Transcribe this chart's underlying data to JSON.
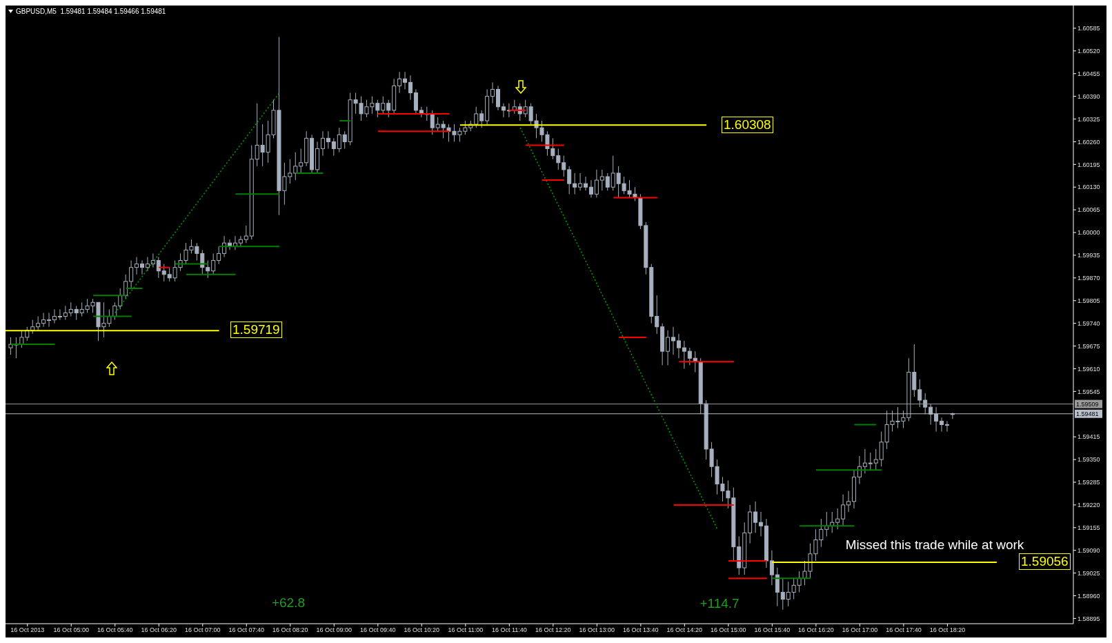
{
  "chart_data": {
    "type": "candlestick",
    "title": "GBPUSD,M5  1.59481 1.59484 1.59466 1.59481",
    "color": "#a7b0bf",
    "x": [
      "2013-10-16T04:05",
      "2013-10-16T04:10",
      "2013-10-16T04:15",
      "2013-10-16T04:20",
      "2013-10-16T04:25",
      "2013-10-16T04:30",
      "2013-10-16T04:35",
      "2013-10-16T04:40",
      "2013-10-16T04:45",
      "2013-10-16T04:50",
      "2013-10-16T04:55",
      "2013-10-16T05:00",
      "2013-10-16T05:05",
      "2013-10-16T05:10",
      "2013-10-16T05:15",
      "2013-10-16T05:20",
      "2013-10-16T05:25",
      "2013-10-16T05:30",
      "2013-10-16T05:35",
      "2013-10-16T05:40",
      "2013-10-16T05:45",
      "2013-10-16T05:50",
      "2013-10-16T05:55",
      "2013-10-16T06:00",
      "2013-10-16T06:05",
      "2013-10-16T06:10",
      "2013-10-16T06:15",
      "2013-10-16T06:20",
      "2013-10-16T06:25",
      "2013-10-16T06:30",
      "2013-10-16T06:35",
      "2013-10-16T06:40",
      "2013-10-16T06:45",
      "2013-10-16T06:50",
      "2013-10-16T06:55",
      "2013-10-16T07:00",
      "2013-10-16T07:05",
      "2013-10-16T07:10",
      "2013-10-16T07:15",
      "2013-10-16T07:20",
      "2013-10-16T07:25",
      "2013-10-16T07:30",
      "2013-10-16T07:35",
      "2013-10-16T07:40",
      "2013-10-16T07:45",
      "2013-10-16T07:50",
      "2013-10-16T07:55",
      "2013-10-16T08:00",
      "2013-10-16T08:05",
      "2013-10-16T08:10",
      "2013-10-16T08:15",
      "2013-10-16T08:20",
      "2013-10-16T08:25",
      "2013-10-16T08:30",
      "2013-10-16T08:35",
      "2013-10-16T08:40",
      "2013-10-16T08:45",
      "2013-10-16T08:50",
      "2013-10-16T08:55",
      "2013-10-16T09:00",
      "2013-10-16T09:05",
      "2013-10-16T09:10",
      "2013-10-16T09:15",
      "2013-10-16T09:20",
      "2013-10-16T09:25",
      "2013-10-16T09:30",
      "2013-10-16T09:35",
      "2013-10-16T09:40",
      "2013-10-16T09:45",
      "2013-10-16T09:50",
      "2013-10-16T09:55",
      "2013-10-16T10:00",
      "2013-10-16T10:05",
      "2013-10-16T10:10",
      "2013-10-16T10:15",
      "2013-10-16T10:20",
      "2013-10-16T10:25",
      "2013-10-16T10:30",
      "2013-10-16T10:35",
      "2013-10-16T10:40",
      "2013-10-16T10:45",
      "2013-10-16T10:50",
      "2013-10-16T10:55",
      "2013-10-16T11:00",
      "2013-10-16T11:05",
      "2013-10-16T11:10",
      "2013-10-16T11:15",
      "2013-10-16T11:20",
      "2013-10-16T11:25",
      "2013-10-16T11:30",
      "2013-10-16T11:35",
      "2013-10-16T11:40",
      "2013-10-16T11:45",
      "2013-10-16T11:50",
      "2013-10-16T11:55",
      "2013-10-16T12:00",
      "2013-10-16T12:05",
      "2013-10-16T12:10",
      "2013-10-16T12:15",
      "2013-10-16T12:20",
      "2013-10-16T12:25",
      "2013-10-16T12:30",
      "2013-10-16T12:35",
      "2013-10-16T12:40",
      "2013-10-16T12:45",
      "2013-10-16T12:50",
      "2013-10-16T12:55",
      "2013-10-16T13:00",
      "2013-10-16T13:05",
      "2013-10-16T13:10",
      "2013-10-16T13:15",
      "2013-10-16T13:20",
      "2013-10-16T13:25",
      "2013-10-16T13:30",
      "2013-10-16T13:35",
      "2013-10-16T13:40",
      "2013-10-16T13:45",
      "2013-10-16T13:50",
      "2013-10-16T13:55",
      "2013-10-16T14:00",
      "2013-10-16T14:05",
      "2013-10-16T14:10",
      "2013-10-16T14:15",
      "2013-10-16T14:20",
      "2013-10-16T14:25",
      "2013-10-16T14:30",
      "2013-10-16T14:35",
      "2013-10-16T14:40",
      "2013-10-16T14:45",
      "2013-10-16T14:50",
      "2013-10-16T14:55",
      "2013-10-16T15:00",
      "2013-10-16T15:05",
      "2013-10-16T15:10",
      "2013-10-16T15:15",
      "2013-10-16T15:20",
      "2013-10-16T15:25",
      "2013-10-16T15:30",
      "2013-10-16T15:35",
      "2013-10-16T15:40",
      "2013-10-16T15:45",
      "2013-10-16T15:50",
      "2013-10-16T15:55",
      "2013-10-16T16:00",
      "2013-10-16T16:05",
      "2013-10-16T16:10",
      "2013-10-16T16:15",
      "2013-10-16T16:20",
      "2013-10-16T16:25",
      "2013-10-16T16:30",
      "2013-10-16T16:35",
      "2013-10-16T16:40",
      "2013-10-16T16:45",
      "2013-10-16T16:50",
      "2013-10-16T16:55",
      "2013-10-16T17:00",
      "2013-10-16T17:05",
      "2013-10-16T17:10",
      "2013-10-16T17:15",
      "2013-10-16T17:20",
      "2013-10-16T17:25",
      "2013-10-16T17:30",
      "2013-10-16T17:35",
      "2013-10-16T17:40",
      "2013-10-16T17:45",
      "2013-10-16T17:50",
      "2013-10-16T17:55",
      "2013-10-16T18:00",
      "2013-10-16T18:05",
      "2013-10-16T18:10",
      "2013-10-16T18:15",
      "2013-10-16T18:20",
      "2013-10-16T18:25"
    ],
    "ohlc": [
      [
        1.5967,
        1.597,
        1.5965,
        1.5968
      ],
      [
        1.5968,
        1.597,
        1.5964,
        1.5968
      ],
      [
        1.5968,
        1.5972,
        1.5967,
        1.597
      ],
      [
        1.597,
        1.5973,
        1.5969,
        1.5972
      ],
      [
        1.5972,
        1.5975,
        1.5971,
        1.5973
      ],
      [
        1.5973,
        1.5976,
        1.5972,
        1.5974
      ],
      [
        1.5974,
        1.5977,
        1.5973,
        1.5975
      ],
      [
        1.5975,
        1.5977,
        1.5973,
        1.5975
      ],
      [
        1.5975,
        1.5978,
        1.5974,
        1.5976
      ],
      [
        1.5976,
        1.5978,
        1.5975,
        1.5976
      ],
      [
        1.5976,
        1.5979,
        1.5975,
        1.5977
      ],
      [
        1.5977,
        1.598,
        1.5976,
        1.5978
      ],
      [
        1.5978,
        1.5979,
        1.5975,
        1.5977
      ],
      [
        1.5977,
        1.598,
        1.5976,
        1.5978
      ],
      [
        1.5978,
        1.5981,
        1.5977,
        1.5979
      ],
      [
        1.5979,
        1.5981,
        1.5977,
        1.598
      ],
      [
        1.598,
        1.598,
        1.5969,
        1.5973
      ],
      [
        1.5973,
        1.598,
        1.597,
        1.5974
      ],
      [
        1.5974,
        1.5978,
        1.5973,
        1.5976
      ],
      [
        1.5976,
        1.598,
        1.5975,
        1.5979
      ],
      [
        1.5979,
        1.5984,
        1.5978,
        1.5982
      ],
      [
        1.5982,
        1.5988,
        1.5981,
        1.5986
      ],
      [
        1.5986,
        1.5992,
        1.5984,
        1.599
      ],
      [
        1.599,
        1.5993,
        1.5988,
        1.5991
      ],
      [
        1.5991,
        1.5992,
        1.5988,
        1.599
      ],
      [
        1.599,
        1.5993,
        1.5989,
        1.5991
      ],
      [
        1.5991,
        1.5994,
        1.599,
        1.5992
      ],
      [
        1.5992,
        1.5993,
        1.5987,
        1.5989
      ],
      [
        1.5989,
        1.5991,
        1.5986,
        1.5988
      ],
      [
        1.5988,
        1.599,
        1.5986,
        1.5987
      ],
      [
        1.5987,
        1.5992,
        1.5986,
        1.599
      ],
      [
        1.599,
        1.5994,
        1.5989,
        1.5992
      ],
      [
        1.5992,
        1.5997,
        1.5991,
        1.5995
      ],
      [
        1.5995,
        1.5998,
        1.5994,
        1.5996
      ],
      [
        1.5996,
        1.5997,
        1.5992,
        1.5994
      ],
      [
        1.5994,
        1.5995,
        1.5988,
        1.599
      ],
      [
        1.599,
        1.5992,
        1.5987,
        1.5989
      ],
      [
        1.5989,
        1.5994,
        1.5988,
        1.5992
      ],
      [
        1.5992,
        1.5996,
        1.5991,
        1.5994
      ],
      [
        1.5994,
        1.5999,
        1.5993,
        1.5997
      ],
      [
        1.5997,
        1.5998,
        1.5995,
        1.5996
      ],
      [
        1.5996,
        1.5999,
        1.5995,
        1.5997
      ],
      [
        1.5997,
        1.5999,
        1.5996,
        1.5998
      ],
      [
        1.5998,
        1.6002,
        1.5997,
        1.5999
      ],
      [
        1.5999,
        1.6025,
        1.5998,
        1.6021
      ],
      [
        1.6021,
        1.6037,
        1.6019,
        1.6025
      ],
      [
        1.6025,
        1.6031,
        1.6019,
        1.6023
      ],
      [
        1.6023,
        1.6032,
        1.602,
        1.6028
      ],
      [
        1.6028,
        1.6038,
        1.6027,
        1.6035
      ],
      [
        1.6035,
        1.6056,
        1.6005,
        1.6012
      ],
      [
        1.6012,
        1.602,
        1.6008,
        1.6016
      ],
      [
        1.6016,
        1.6021,
        1.6014,
        1.6017
      ],
      [
        1.6017,
        1.6023,
        1.6015,
        1.6019
      ],
      [
        1.6019,
        1.6024,
        1.6017,
        1.602
      ],
      [
        1.602,
        1.6029,
        1.6019,
        1.6027
      ],
      [
        1.6027,
        1.6028,
        1.6017,
        1.6018
      ],
      [
        1.6018,
        1.6026,
        1.6017,
        1.6024
      ],
      [
        1.6024,
        1.6029,
        1.6022,
        1.6027
      ],
      [
        1.6027,
        1.6029,
        1.6024,
        1.6026
      ],
      [
        1.6026,
        1.6027,
        1.6022,
        1.6024
      ],
      [
        1.6024,
        1.603,
        1.6023,
        1.6028
      ],
      [
        1.6028,
        1.6029,
        1.6024,
        1.6026
      ],
      [
        1.6026,
        1.604,
        1.6025,
        1.6038
      ],
      [
        1.6038,
        1.604,
        1.6034,
        1.6037
      ],
      [
        1.6037,
        1.6039,
        1.6032,
        1.6034
      ],
      [
        1.6034,
        1.6038,
        1.6033,
        1.6036
      ],
      [
        1.6036,
        1.6039,
        1.6034,
        1.6037
      ],
      [
        1.6037,
        1.6038,
        1.6033,
        1.6035
      ],
      [
        1.6035,
        1.6039,
        1.6034,
        1.6037
      ],
      [
        1.6037,
        1.6038,
        1.6033,
        1.6035
      ],
      [
        1.6035,
        1.6044,
        1.6034,
        1.6042
      ],
      [
        1.6042,
        1.6046,
        1.604,
        1.6044
      ],
      [
        1.6044,
        1.6046,
        1.6041,
        1.6043
      ],
      [
        1.6043,
        1.6045,
        1.6038,
        1.604
      ],
      [
        1.604,
        1.6041,
        1.6034,
        1.6035
      ],
      [
        1.6035,
        1.6036,
        1.6033,
        1.6034
      ],
      [
        1.6034,
        1.6036,
        1.6032,
        1.6034
      ],
      [
        1.6034,
        1.6035,
        1.6028,
        1.603
      ],
      [
        1.603,
        1.6033,
        1.6029,
        1.6031
      ],
      [
        1.6031,
        1.6032,
        1.6027,
        1.603
      ],
      [
        1.603,
        1.6031,
        1.6026,
        1.6029
      ],
      [
        1.6029,
        1.6031,
        1.6026,
        1.6028
      ],
      [
        1.6028,
        1.603,
        1.6026,
        1.6029
      ],
      [
        1.6029,
        1.6032,
        1.6028,
        1.603
      ],
      [
        1.603,
        1.6032,
        1.6029,
        1.6031
      ],
      [
        1.6031,
        1.6036,
        1.603,
        1.6034
      ],
      [
        1.6034,
        1.6035,
        1.603,
        1.6032
      ],
      [
        1.6032,
        1.6041,
        1.6031,
        1.6039
      ],
      [
        1.6039,
        1.6043,
        1.6037,
        1.6041
      ],
      [
        1.6041,
        1.6042,
        1.6035,
        1.6036
      ],
      [
        1.6036,
        1.6037,
        1.6033,
        1.6035
      ],
      [
        1.6035,
        1.6037,
        1.6033,
        1.6035
      ],
      [
        1.6035,
        1.6038,
        1.6034,
        1.6036
      ],
      [
        1.6036,
        1.6037,
        1.6032,
        1.6034
      ],
      [
        1.6034,
        1.6038,
        1.6033,
        1.6036
      ],
      [
        1.6036,
        1.6037,
        1.6031,
        1.6032
      ],
      [
        1.6032,
        1.6034,
        1.6027,
        1.603
      ],
      [
        1.603,
        1.6032,
        1.6026,
        1.6028
      ],
      [
        1.6028,
        1.6029,
        1.6022,
        1.6024
      ],
      [
        1.6024,
        1.6027,
        1.6021,
        1.6022
      ],
      [
        1.6022,
        1.6024,
        1.6018,
        1.602
      ],
      [
        1.602,
        1.6022,
        1.6016,
        1.6018
      ],
      [
        1.6018,
        1.6019,
        1.6011,
        1.6014
      ],
      [
        1.6014,
        1.6017,
        1.6011,
        1.6013
      ],
      [
        1.6013,
        1.6017,
        1.6012,
        1.6014
      ],
      [
        1.6014,
        1.6016,
        1.6012,
        1.6013
      ],
      [
        1.6013,
        1.6015,
        1.601,
        1.6011
      ],
      [
        1.6011,
        1.6018,
        1.601,
        1.6015
      ],
      [
        1.6015,
        1.6018,
        1.6012,
        1.6016
      ],
      [
        1.6016,
        1.6017,
        1.6012,
        1.6013
      ],
      [
        1.6013,
        1.6022,
        1.6012,
        1.6017
      ],
      [
        1.6017,
        1.6019,
        1.601,
        1.6014
      ],
      [
        1.6014,
        1.6016,
        1.6011,
        1.6012
      ],
      [
        1.6012,
        1.6015,
        1.601,
        1.6011
      ],
      [
        1.6011,
        1.6013,
        1.6009,
        1.601
      ],
      [
        1.601,
        1.6011,
        1.6001,
        1.6002
      ],
      [
        1.6002,
        1.6003,
        1.5988,
        1.599
      ],
      [
        1.599,
        1.5991,
        1.5974,
        1.5976
      ],
      [
        1.5976,
        1.5982,
        1.5971,
        1.5973
      ],
      [
        1.5973,
        1.5974,
        1.5962,
        1.5966
      ],
      [
        1.5966,
        1.5972,
        1.5962,
        1.597
      ],
      [
        1.597,
        1.5973,
        1.5965,
        1.5969
      ],
      [
        1.5969,
        1.5971,
        1.5964,
        1.5967
      ],
      [
        1.5967,
        1.5969,
        1.5961,
        1.5966
      ],
      [
        1.5966,
        1.5967,
        1.5962,
        1.5964
      ],
      [
        1.5964,
        1.5966,
        1.596,
        1.5963
      ],
      [
        1.5963,
        1.5964,
        1.5948,
        1.5951
      ],
      [
        1.5951,
        1.5952,
        1.5935,
        1.5938
      ],
      [
        1.5938,
        1.594,
        1.593,
        1.5933
      ],
      [
        1.5933,
        1.5935,
        1.5925,
        1.5928
      ],
      [
        1.5928,
        1.593,
        1.5923,
        1.5926
      ],
      [
        1.5926,
        1.5929,
        1.5921,
        1.5924
      ],
      [
        1.5924,
        1.5927,
        1.5906,
        1.591
      ],
      [
        1.591,
        1.5913,
        1.5902,
        1.5904
      ],
      [
        1.5904,
        1.5917,
        1.5902,
        1.5914
      ],
      [
        1.5914,
        1.5922,
        1.5911,
        1.592
      ],
      [
        1.592,
        1.5923,
        1.5914,
        1.5917
      ],
      [
        1.5917,
        1.592,
        1.5913,
        1.5916
      ],
      [
        1.5916,
        1.5918,
        1.5904,
        1.5906
      ],
      [
        1.5906,
        1.5909,
        1.5899,
        1.5902
      ],
      [
        1.5902,
        1.5904,
        1.5893,
        1.5897
      ],
      [
        1.5897,
        1.5901,
        1.5892,
        1.5895
      ],
      [
        1.5895,
        1.59,
        1.5893,
        1.5897
      ],
      [
        1.5897,
        1.5901,
        1.5895,
        1.5899
      ],
      [
        1.5899,
        1.5903,
        1.5897,
        1.5901
      ],
      [
        1.5901,
        1.5906,
        1.5899,
        1.5903
      ],
      [
        1.5903,
        1.5911,
        1.5901,
        1.5908
      ],
      [
        1.5908,
        1.5915,
        1.5906,
        1.5912
      ],
      [
        1.5912,
        1.5918,
        1.591,
        1.5915
      ],
      [
        1.5915,
        1.592,
        1.5913,
        1.5916
      ],
      [
        1.5916,
        1.592,
        1.5914,
        1.5917
      ],
      [
        1.5917,
        1.5921,
        1.5915,
        1.5918
      ],
      [
        1.5918,
        1.5925,
        1.5916,
        1.5922
      ],
      [
        1.5922,
        1.5926,
        1.592,
        1.5923
      ],
      [
        1.5923,
        1.5932,
        1.5921,
        1.593
      ],
      [
        1.593,
        1.5936,
        1.5928,
        1.5933
      ],
      [
        1.5933,
        1.5938,
        1.5931,
        1.5934
      ],
      [
        1.5934,
        1.5937,
        1.5932,
        1.5934
      ],
      [
        1.5934,
        1.5938,
        1.5932,
        1.5935
      ],
      [
        1.5935,
        1.5943,
        1.5933,
        1.594
      ],
      [
        1.594,
        1.5949,
        1.5938,
        1.5945
      ],
      [
        1.5945,
        1.5949,
        1.5943,
        1.5946
      ],
      [
        1.5946,
        1.595,
        1.5944,
        1.5946
      ],
      [
        1.5946,
        1.5949,
        1.5944,
        1.5947
      ],
      [
        1.5947,
        1.5964,
        1.5946,
        1.596
      ],
      [
        1.596,
        1.5968,
        1.5953,
        1.5955
      ],
      [
        1.5955,
        1.5958,
        1.595,
        1.5952
      ],
      [
        1.5952,
        1.5954,
        1.5948,
        1.595
      ],
      [
        1.595,
        1.5951,
        1.5945,
        1.5948
      ],
      [
        1.5948,
        1.595,
        1.5943,
        1.5946
      ],
      [
        1.5946,
        1.5947,
        1.5943,
        1.5945
      ],
      [
        1.5945,
        1.5946,
        1.5943,
        1.5945
      ],
      [
        1.59481,
        1.59484,
        1.59466,
        1.59481
      ]
    ],
    "series": [
      {
        "type": "line",
        "color": "#00a000",
        "line_style": "dotted",
        "x": [
          "2013-10-16T05:40",
          "2013-10-16T08:10"
        ],
        "values": [
          1.5977,
          1.604
        ]
      },
      {
        "type": "line",
        "color": "#00a000",
        "line_style": "dotted",
        "x": [
          "2013-10-16T11:50",
          "2013-10-16T14:50"
        ],
        "values": [
          1.603,
          1.5915
        ]
      },
      {
        "type": "line",
        "color": "#008000",
        "line_style": "solid",
        "x": [
          "2013-10-16T04:05",
          "2013-10-16T04:45"
        ],
        "values": [
          1.5968,
          1.5968
        ]
      },
      {
        "type": "line",
        "color": "#008000",
        "line_style": "solid",
        "x": [
          "2013-10-16T05:20",
          "2013-10-16T05:55"
        ],
        "values": [
          1.5976,
          1.5976
        ]
      },
      {
        "type": "line",
        "color": "#008000",
        "line_style": "solid",
        "x": [
          "2013-10-16T05:20",
          "2013-10-16T05:50"
        ],
        "values": [
          1.5982,
          1.5982
        ]
      },
      {
        "type": "line",
        "color": "#008000",
        "line_style": "solid",
        "x": [
          "2013-10-16T05:50",
          "2013-10-16T06:05"
        ],
        "values": [
          1.5984,
          1.5984
        ]
      },
      {
        "type": "line",
        "color": "#008000",
        "line_style": "solid",
        "x": [
          "2013-10-16T06:35",
          "2013-10-16T07:05"
        ],
        "values": [
          1.5991,
          1.5991
        ]
      },
      {
        "type": "line",
        "color": "#008000",
        "line_style": "solid",
        "x": [
          "2013-10-16T06:45",
          "2013-10-16T07:30"
        ],
        "values": [
          1.5988,
          1.5988
        ]
      },
      {
        "type": "line",
        "color": "#008000",
        "line_style": "solid",
        "x": [
          "2013-10-16T07:15",
          "2013-10-16T08:10"
        ],
        "values": [
          1.5996,
          1.5996
        ]
      },
      {
        "type": "line",
        "color": "#008000",
        "line_style": "solid",
        "x": [
          "2013-10-16T07:30",
          "2013-10-16T08:10"
        ],
        "values": [
          1.6011,
          1.6011
        ]
      },
      {
        "type": "line",
        "color": "#008000",
        "line_style": "solid",
        "x": [
          "2013-10-16T08:25",
          "2013-10-16T08:50"
        ],
        "values": [
          1.6017,
          1.6017
        ]
      },
      {
        "type": "line",
        "color": "#008000",
        "line_style": "solid",
        "x": [
          "2013-10-16T09:05",
          "2013-10-16T09:15"
        ],
        "values": [
          1.6032,
          1.6032
        ]
      },
      {
        "type": "line",
        "color": "#008000",
        "line_style": "solid",
        "x": [
          "2013-10-16T15:40",
          "2013-10-16T16:15"
        ],
        "values": [
          1.5901,
          1.5901
        ]
      },
      {
        "type": "line",
        "color": "#008000",
        "line_style": "solid",
        "x": [
          "2013-10-16T16:05",
          "2013-10-16T16:55"
        ],
        "values": [
          1.5916,
          1.5916
        ]
      },
      {
        "type": "line",
        "color": "#008000",
        "line_style": "solid",
        "x": [
          "2013-10-16T16:20",
          "2013-10-16T17:20"
        ],
        "values": [
          1.5932,
          1.5932
        ]
      },
      {
        "type": "line",
        "color": "#008000",
        "line_style": "solid",
        "x": [
          "2013-10-16T16:55",
          "2013-10-16T17:15"
        ],
        "values": [
          1.5945,
          1.5945
        ]
      },
      {
        "type": "line",
        "color": "#ff0000",
        "line_style": "solid",
        "x": [
          "2013-10-16T06:20",
          "2013-10-16T06:30"
        ],
        "values": [
          1.599,
          1.599
        ]
      },
      {
        "type": "line",
        "color": "#ff0000",
        "line_style": "solid",
        "x": [
          "2013-10-16T09:40",
          "2013-10-16T10:45"
        ],
        "values": [
          1.6034,
          1.6034
        ]
      },
      {
        "type": "line",
        "color": "#ff0000",
        "line_style": "solid",
        "x": [
          "2013-10-16T09:40",
          "2013-10-16T10:45"
        ],
        "values": [
          1.6029,
          1.6029
        ]
      },
      {
        "type": "line",
        "color": "#ff0000",
        "line_style": "solid",
        "x": [
          "2013-10-16T11:40",
          "2013-10-16T11:55"
        ],
        "values": [
          1.6035,
          1.6035
        ]
      },
      {
        "type": "line",
        "color": "#ff0000",
        "line_style": "solid",
        "x": [
          "2013-10-16T11:55",
          "2013-10-16T12:30"
        ],
        "values": [
          1.6025,
          1.6025
        ]
      },
      {
        "type": "line",
        "color": "#ff0000",
        "line_style": "solid",
        "x": [
          "2013-10-16T12:10",
          "2013-10-16T12:30"
        ],
        "values": [
          1.6015,
          1.6015
        ]
      },
      {
        "type": "line",
        "color": "#ff0000",
        "line_style": "solid",
        "x": [
          "2013-10-16T13:15",
          "2013-10-16T13:55"
        ],
        "values": [
          1.601,
          1.601
        ]
      },
      {
        "type": "line",
        "color": "#ff0000",
        "line_style": "solid",
        "x": [
          "2013-10-16T13:20",
          "2013-10-16T13:45"
        ],
        "values": [
          1.597,
          1.597
        ]
      },
      {
        "type": "line",
        "color": "#ff0000",
        "line_style": "solid",
        "x": [
          "2013-10-16T14:15",
          "2013-10-16T15:05"
        ],
        "values": [
          1.5963,
          1.5963
        ]
      },
      {
        "type": "line",
        "color": "#ff0000",
        "line_style": "solid",
        "x": [
          "2013-10-16T14:10",
          "2013-10-16T15:05"
        ],
        "values": [
          1.5922,
          1.5922
        ]
      },
      {
        "type": "line",
        "color": "#ff0000",
        "line_style": "solid",
        "x": [
          "2013-10-16T15:00",
          "2013-10-16T15:35"
        ],
        "values": [
          1.5906,
          1.5906
        ]
      },
      {
        "type": "line",
        "color": "#ff0000",
        "line_style": "solid",
        "x": [
          "2013-10-16T15:00",
          "2013-10-16T15:35"
        ],
        "values": [
          1.5901,
          1.5901
        ]
      },
      {
        "type": "line",
        "color": "#ffff00",
        "line_style": "solid",
        "x": [
          "2013-10-16T04:00",
          "2013-10-16T07:15"
        ],
        "values": [
          1.59719,
          1.59719
        ]
      },
      {
        "type": "line",
        "color": "#ffff00",
        "line_style": "solid",
        "x": [
          "2013-10-16T10:55",
          "2013-10-16T14:40"
        ],
        "values": [
          1.60308,
          1.60308
        ]
      },
      {
        "type": "line",
        "color": "#ffff00",
        "line_style": "solid",
        "x": [
          "2013-10-16T15:40",
          "2013-10-16T19:05"
        ],
        "values": [
          1.59056,
          1.59056
        ]
      }
    ],
    "ref_lines": [
      {
        "axis": "y",
        "value": 1.59509,
        "label": "1.59509",
        "color": "#9a9a9a"
      },
      {
        "axis": "y",
        "value": 1.59481,
        "label": "1.59481",
        "color": "#b8c0cc"
      }
    ],
    "annotations": [
      "1.59719",
      "1.60308",
      "1.59056",
      "+62.8",
      "+114.7",
      "Missed this trade while at work"
    ],
    "xlim": [
      "2013-10-16T04:00",
      "2013-10-16T20:15"
    ],
    "xticks": [
      {
        "value": "2013-10-16T04:20",
        "label": "16 Oct 2013"
      },
      {
        "value": "2013-10-16T05:00",
        "label": "16 Oct 05:00"
      },
      {
        "value": "2013-10-16T05:40",
        "label": "16 Oct 05:40"
      },
      {
        "value": "2013-10-16T06:20",
        "label": "16 Oct 06:20"
      },
      {
        "value": "2013-10-16T07:00",
        "label": "16 Oct 07:00"
      },
      {
        "value": "2013-10-16T07:40",
        "label": "16 Oct 07:40"
      },
      {
        "value": "2013-10-16T08:20",
        "label": "16 Oct 08:20"
      },
      {
        "value": "2013-10-16T09:00",
        "label": "16 Oct 09:00"
      },
      {
        "value": "2013-10-16T09:40",
        "label": "16 Oct 09:40"
      },
      {
        "value": "2013-10-16T10:20",
        "label": "16 Oct 10:20"
      },
      {
        "value": "2013-10-16T11:00",
        "label": "16 Oct 11:00"
      },
      {
        "value": "2013-10-16T11:40",
        "label": "16 Oct 11:40"
      },
      {
        "value": "2013-10-16T12:20",
        "label": "16 Oct 12:20"
      },
      {
        "value": "2013-10-16T13:00",
        "label": "16 Oct 13:00"
      },
      {
        "value": "2013-10-16T13:40",
        "label": "16 Oct 13:40"
      },
      {
        "value": "2013-10-16T14:20",
        "label": "16 Oct 14:20"
      },
      {
        "value": "2013-10-16T15:00",
        "label": "16 Oct 15:00"
      },
      {
        "value": "2013-10-16T15:40",
        "label": "16 Oct 15:40"
      },
      {
        "value": "2013-10-16T16:20",
        "label": "16 Oct 16:20"
      },
      {
        "value": "2013-10-16T17:00",
        "label": "16 Oct 17:00"
      },
      {
        "value": "2013-10-16T17:40",
        "label": "16 Oct 17:40"
      },
      {
        "value": "2013-10-16T18:20",
        "label": "16 Oct 18:20"
      }
    ],
    "ylim": [
      1.5888,
      1.6065
    ],
    "yticks": [
      1.60585,
      {
        "value": 1.6052,
        "label": "1.60520"
      },
      1.60455,
      {
        "value": 1.6039,
        "label": "1.60390"
      },
      1.60325,
      {
        "value": 1.6026,
        "label": "1.60260"
      },
      1.60195,
      {
        "value": 1.6013,
        "label": "1.60130"
      },
      1.60065,
      {
        "value": 1.6,
        "label": "1.60000"
      },
      1.59935,
      {
        "value": 1.5987,
        "label": "1.59870"
      },
      1.59805,
      {
        "value": 1.5974,
        "label": "1.59740"
      },
      1.59675,
      {
        "value": 1.5961,
        "label": "1.59610"
      },
      1.59545,
      1.59415,
      {
        "value": 1.5935,
        "label": "1.59350"
      },
      1.59285,
      {
        "value": 1.5922,
        "label": "1.59220"
      },
      1.59155,
      {
        "value": 1.5909,
        "label": "1.59090"
      },
      1.59025,
      {
        "value": 1.5896,
        "label": "1.58960"
      },
      1.58895
    ]
  }
}
